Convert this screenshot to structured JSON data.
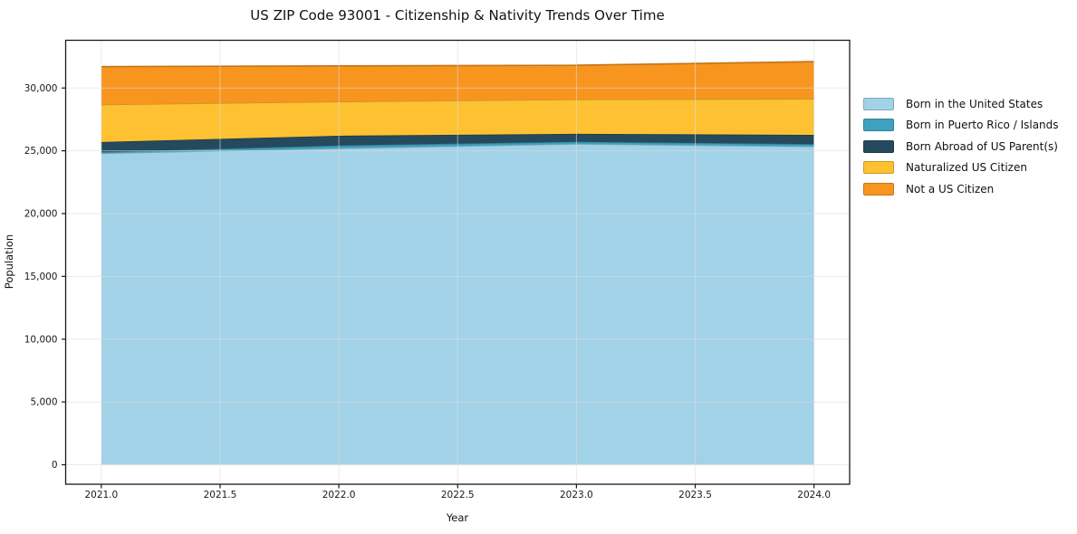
{
  "title": "US ZIP Code 93001 - Citizenship & Nativity Trends Over Time",
  "axes": {
    "x_label": "Year",
    "y_label": "Population"
  },
  "legend": {
    "position": "outside-right",
    "items": [
      {
        "label": "Born in the United States",
        "color": "#a2d2e7"
      },
      {
        "label": "Born in Puerto Rico / Islands",
        "color": "#3fa1bd"
      },
      {
        "label": "Born Abroad of US Parent(s)",
        "color": "#254a5e"
      },
      {
        "label": "Naturalized US Citizen",
        "color": "#fdc132"
      },
      {
        "label": "Not a US Citizen",
        "color": "#f7951f"
      }
    ]
  },
  "chart_data": {
    "type": "area",
    "stacked": true,
    "title": "US ZIP Code 93001 - Citizenship & Nativity Trends Over Time",
    "xlabel": "Year",
    "ylabel": "Population",
    "x": [
      2021,
      2022,
      2023,
      2024
    ],
    "series": [
      {
        "name": "Born in the United States",
        "color": "#a2d2e7",
        "values": [
          24800,
          25200,
          25550,
          25350
        ]
      },
      {
        "name": "Born in Puerto Rico / Islands",
        "color": "#3fa1bd",
        "values": [
          100,
          220,
          170,
          180
        ]
      },
      {
        "name": "Born Abroad of US Parent(s)",
        "color": "#254a5e",
        "values": [
          800,
          780,
          630,
          740
        ]
      },
      {
        "name": "Naturalized US Citizen",
        "color": "#fdc132",
        "values": [
          2980,
          2720,
          2740,
          2870
        ]
      },
      {
        "name": "Not a US Citizen",
        "color": "#f7951f",
        "values": [
          3020,
          2840,
          2720,
          2960
        ]
      }
    ],
    "stack_totals": [
      31700,
      31760,
      31810,
      32100
    ],
    "xlim": [
      2020.85,
      2024.15
    ],
    "ylim": [
      -1550,
      33800
    ],
    "xticks": [
      {
        "value": 2021.0,
        "label": "2021.0"
      },
      {
        "value": 2021.5,
        "label": "2021.5"
      },
      {
        "value": 2022.0,
        "label": "2022.0"
      },
      {
        "value": 2022.5,
        "label": "2022.5"
      },
      {
        "value": 2023.0,
        "label": "2023.0"
      },
      {
        "value": 2023.5,
        "label": "2023.5"
      },
      {
        "value": 2024.0,
        "label": "2024.0"
      }
    ],
    "yticks": [
      {
        "value": 0,
        "label": "0"
      },
      {
        "value": 5000,
        "label": "5,000"
      },
      {
        "value": 10000,
        "label": "10,000"
      },
      {
        "value": 15000,
        "label": "15,000"
      },
      {
        "value": 20000,
        "label": "20,000"
      },
      {
        "value": 25000,
        "label": "25,000"
      },
      {
        "value": 30000,
        "label": "30,000"
      }
    ],
    "grid": true,
    "legend_position": "outside-right"
  }
}
